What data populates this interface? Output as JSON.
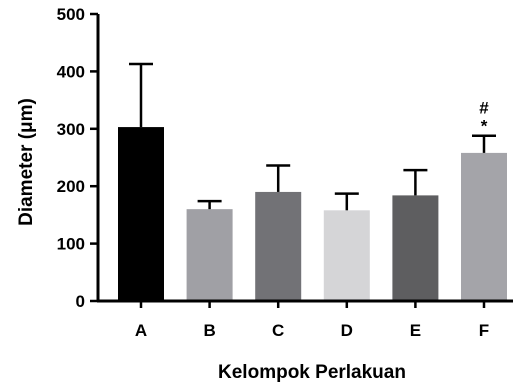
{
  "chart_data": {
    "type": "bar",
    "categories": [
      "A",
      "B",
      "C",
      "D",
      "E",
      "F"
    ],
    "values": [
      303,
      160,
      190,
      158,
      184,
      258
    ],
    "errors": [
      110,
      14,
      46,
      29,
      44,
      30
    ],
    "colors": [
      "#000000",
      "#a0a0a5",
      "#727276",
      "#d5d5d7",
      "#5e5e60",
      "#a4a4a9"
    ],
    "annotations": [
      {
        "category": "F",
        "symbols": [
          "*",
          "#"
        ]
      }
    ],
    "title": "",
    "xlabel": "Kelompok Perlakuan",
    "ylabel": "Diameter (μm)",
    "ylim": [
      0,
      500
    ],
    "yticks": [
      0,
      100,
      200,
      300,
      400,
      500
    ],
    "grid": false,
    "legend": "none"
  }
}
